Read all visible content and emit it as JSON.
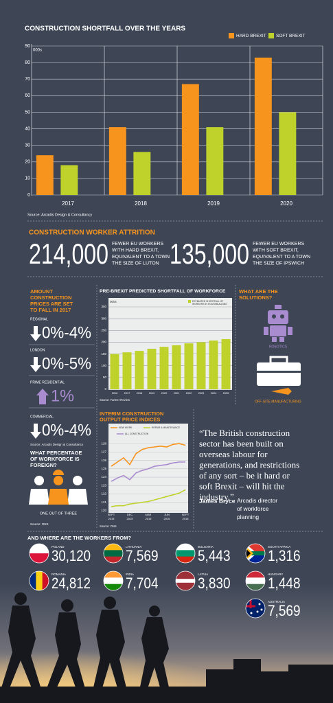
{
  "chart_data": [
    {
      "type": "bar",
      "title": "CONSTRUCTION SHORTFALL OVER THE YEARS",
      "y_label": "000s",
      "categories": [
        "2017",
        "2018",
        "2019",
        "2020"
      ],
      "series": [
        {
          "name": "HARD BREXIT",
          "color": "#f7941d",
          "values": [
            24,
            41,
            67,
            83
          ]
        },
        {
          "name": "SOFT BREXIT",
          "color": "#bfd22b",
          "values": [
            18,
            26,
            41,
            50
          ]
        }
      ],
      "ylim": [
        0,
        90
      ],
      "yticks": [
        0,
        10,
        20,
        30,
        40,
        50,
        60,
        70,
        80,
        90
      ],
      "grid": true,
      "source": "Source: Arcadis Design & Consultancy"
    },
    {
      "type": "bar",
      "title": "PRE-BREXIT PREDICTED SHORTFALL OF WORKFORCE",
      "y_label": "000s",
      "categories": [
        "2016",
        "2017",
        "2018",
        "2019",
        "2020",
        "2021",
        "2022",
        "2023",
        "2024",
        "2025"
      ],
      "series": [
        {
          "name": "ESTIMATED SHORTFALL OF WORKERS IN HOUSEBUILDING",
          "color": "#bfd22b",
          "values": [
            150,
            157,
            163,
            172,
            180,
            187,
            195,
            200,
            207,
            213
          ]
        }
      ],
      "ylim": [
        0,
        350
      ],
      "yticks": [
        0,
        50,
        100,
        150,
        200,
        250,
        300,
        350
      ],
      "grid": true,
      "source": "Source: Farmer Review"
    },
    {
      "type": "line",
      "title": "INTERIM CONSTRUCTION OUTPUT PRICE INDICES",
      "categories": [
        "SEPT 2015",
        null,
        null,
        "DEC 2015",
        null,
        null,
        "MAR 2016",
        null,
        null,
        "JUN 2016",
        null,
        null,
        "SEPT 2016"
      ],
      "series": [
        {
          "name": "NEW WORK",
          "color": "#f7941d",
          "values": [
            125.3,
            125.8,
            126.3,
            125.5,
            126.8,
            127.3,
            127.5,
            127.6,
            127.7,
            127.6,
            127.9,
            128.0,
            127.8
          ]
        },
        {
          "name": "REPAIR & MAINTENANCE",
          "color": "#bfd22b",
          "values": [
            120.5,
            120.6,
            120.6,
            120.8,
            120.9,
            121.0,
            121.1,
            121.3,
            121.5,
            121.7,
            121.9,
            122.1,
            122.5
          ]
        },
        {
          "name": "ALL CONSTRUCTION",
          "color": "#a98bd0",
          "values": [
            123.5,
            123.9,
            124.2,
            123.7,
            124.5,
            124.8,
            125.0,
            125.3,
            125.4,
            125.5,
            125.7,
            125.8,
            125.8
          ]
        }
      ],
      "ylim": [
        120,
        128.5
      ],
      "yticks": [
        120,
        121,
        122,
        123,
        124,
        125,
        126,
        127,
        128
      ],
      "grid": true,
      "source": "Source: ONS"
    }
  ],
  "attrition": {
    "title": "CONSTRUCTION WORKER ATTRITION",
    "items": [
      {
        "figure": "214,000",
        "text": "FEWER EU WORKERS WITH HARD BREXIT, EQUIVALENT TO A TOWN THE SIZE OF LUTON"
      },
      {
        "figure": "135,000",
        "text": "FEWER EU WORKERS WITH SOFT BREXIT, EQUIVALENT TO A TOWN THE SIZE OF IPSWICH"
      }
    ]
  },
  "prices": {
    "title": "AMOUNT CONSTRUCTION PRICES ARE SET TO FALL IN 2017",
    "items": [
      {
        "label": "REGIONAL",
        "value": "0%-4%",
        "direction": "down"
      },
      {
        "label": "LONDON",
        "value": "0%-5%",
        "direction": "down"
      },
      {
        "label": "PRIME RESIDENTIAL",
        "value": "1%",
        "direction": "up"
      },
      {
        "label": "COMMERCIAL",
        "value": "0%-4%",
        "direction": "down"
      }
    ],
    "source": "Source: Arcadis Design & Consultancy"
  },
  "foreign": {
    "title": "WHAT PERCENTAGE OF WORKFORCE IS FOREIGN?",
    "answer": "ONE OUT OF THREE",
    "source": "Source: ONS"
  },
  "solutions": {
    "title": "WHAT ARE THE SOLUTIONS?",
    "items": [
      "ROBOTICS",
      "OFF-SITE MANUFACTURING"
    ]
  },
  "quote": {
    "text": "“The British construction sector has been built on overseas labour for generations, and restrictions of any sort – be it hard or soft Brexit – will hit the industry.”",
    "author": "James Bryce",
    "role": "Arcadis director of workforce planning"
  },
  "origins": {
    "title": "AND WHERE ARE THE WORKERS FROM?",
    "countries": [
      {
        "name": "POLAND",
        "count": "30,120"
      },
      {
        "name": "LITHUANIA",
        "count": "7,569"
      },
      {
        "name": "BULGARIA",
        "count": "5,443"
      },
      {
        "name": "SOUTH AFRICA",
        "count": "1,316"
      },
      {
        "name": "ROMANIA",
        "count": "24,812"
      },
      {
        "name": "INDIA",
        "count": "7,704"
      },
      {
        "name": "LATVIA",
        "count": "3,830"
      },
      {
        "name": "HUNGARY",
        "count": "1,448"
      },
      {
        "name": "AUSTRALIA",
        "count": "7,569"
      }
    ]
  }
}
